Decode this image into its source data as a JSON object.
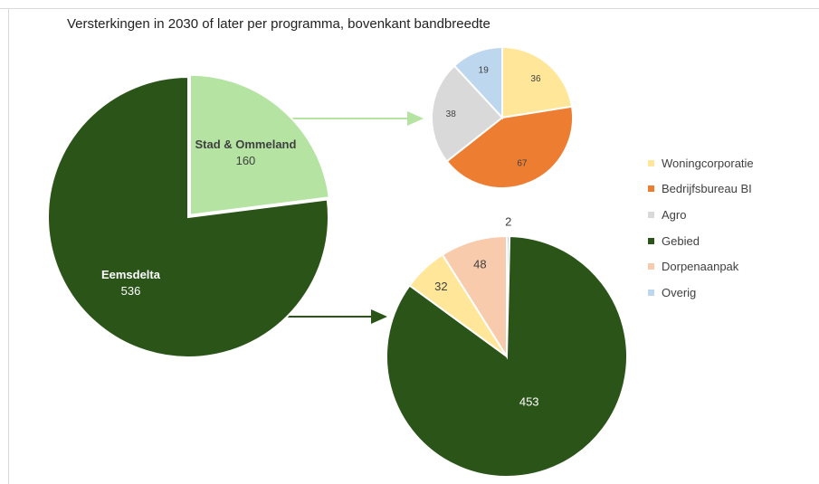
{
  "chart_data": {
    "type": "pie",
    "title": "Versterkingen in 2030 of later per programma, bovenkant bandbreedte",
    "charts": [
      {
        "id": "programma",
        "categories": [
          "Stad & Ommeland",
          "Eemsdelta"
        ],
        "values": [
          160,
          536
        ],
        "colors": [
          "#b4e3a2",
          "#2a5418"
        ]
      },
      {
        "id": "stad-ommeland-detail",
        "categories": [
          "Woningcorporatie",
          "Bedrijfsbureau BI",
          "Agro",
          "Overig"
        ],
        "values": [
          36,
          67,
          38,
          19
        ],
        "colors": [
          "#ffe699",
          "#ed7d31",
          "#d9d9d9",
          "#bdd7ee"
        ]
      },
      {
        "id": "eemsdelta-detail",
        "categories": [
          "Gebied",
          "Woningcorporatie",
          "Dorpenaanpak",
          "Overig"
        ],
        "values": [
          453,
          32,
          48,
          2
        ],
        "colors": [
          "#2a5418",
          "#ffe699",
          "#f8cbad",
          "#bdd7ee"
        ]
      }
    ],
    "legend": {
      "position": "right",
      "items": [
        {
          "label": "Woningcorporatie",
          "color": "#ffe699"
        },
        {
          "label": "Bedrijfsbureau BI",
          "color": "#ed7d31"
        },
        {
          "label": "Agro",
          "color": "#d9d9d9"
        },
        {
          "label": "Gebied",
          "color": "#2a5418"
        },
        {
          "label": "Dorpenaanpak",
          "color": "#f8cbad"
        },
        {
          "label": "Overig",
          "color": "#bdd7ee"
        }
      ]
    }
  }
}
